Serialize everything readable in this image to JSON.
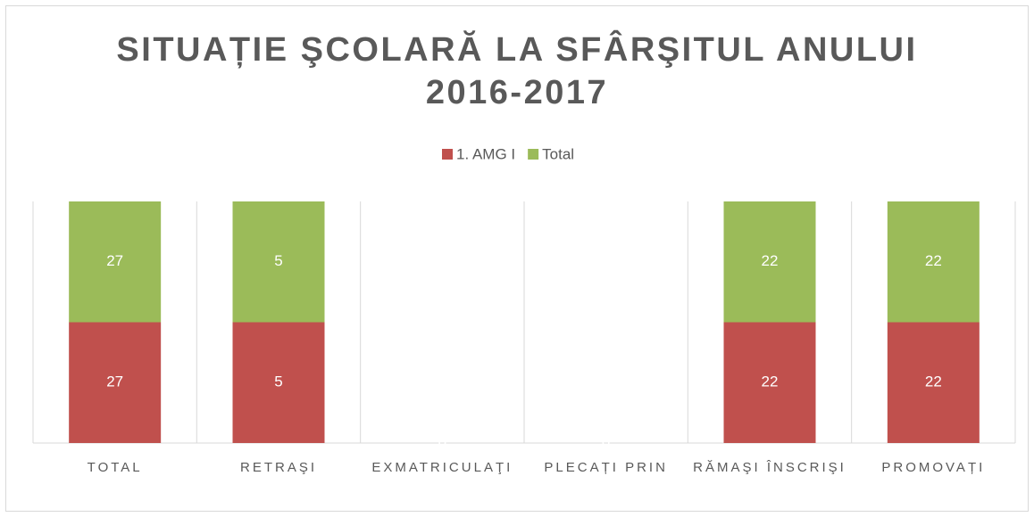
{
  "chart_data": {
    "type": "bar",
    "stacked": "percent",
    "title": [
      "SITUAȚIE ŞCOLARĂ LA SFÂRŞITUL ANULUI",
      "2016-2017"
    ],
    "categories": [
      "TOTAL",
      "RETRAŞI",
      "EXMATRICULAŢI",
      "PLECAȚI PRIN",
      "RĂMAŞI ÎNSCRIŞI",
      "PROMOVAȚI"
    ],
    "series": [
      {
        "name": "1. AMG I",
        "color": "#c0504d",
        "values": [
          27,
          5,
          0,
          0,
          22,
          22
        ]
      },
      {
        "name": "Total",
        "color": "#9bbb59",
        "values": [
          27,
          5,
          0,
          0,
          22,
          22
        ]
      }
    ],
    "grid": true,
    "legend": "top"
  }
}
